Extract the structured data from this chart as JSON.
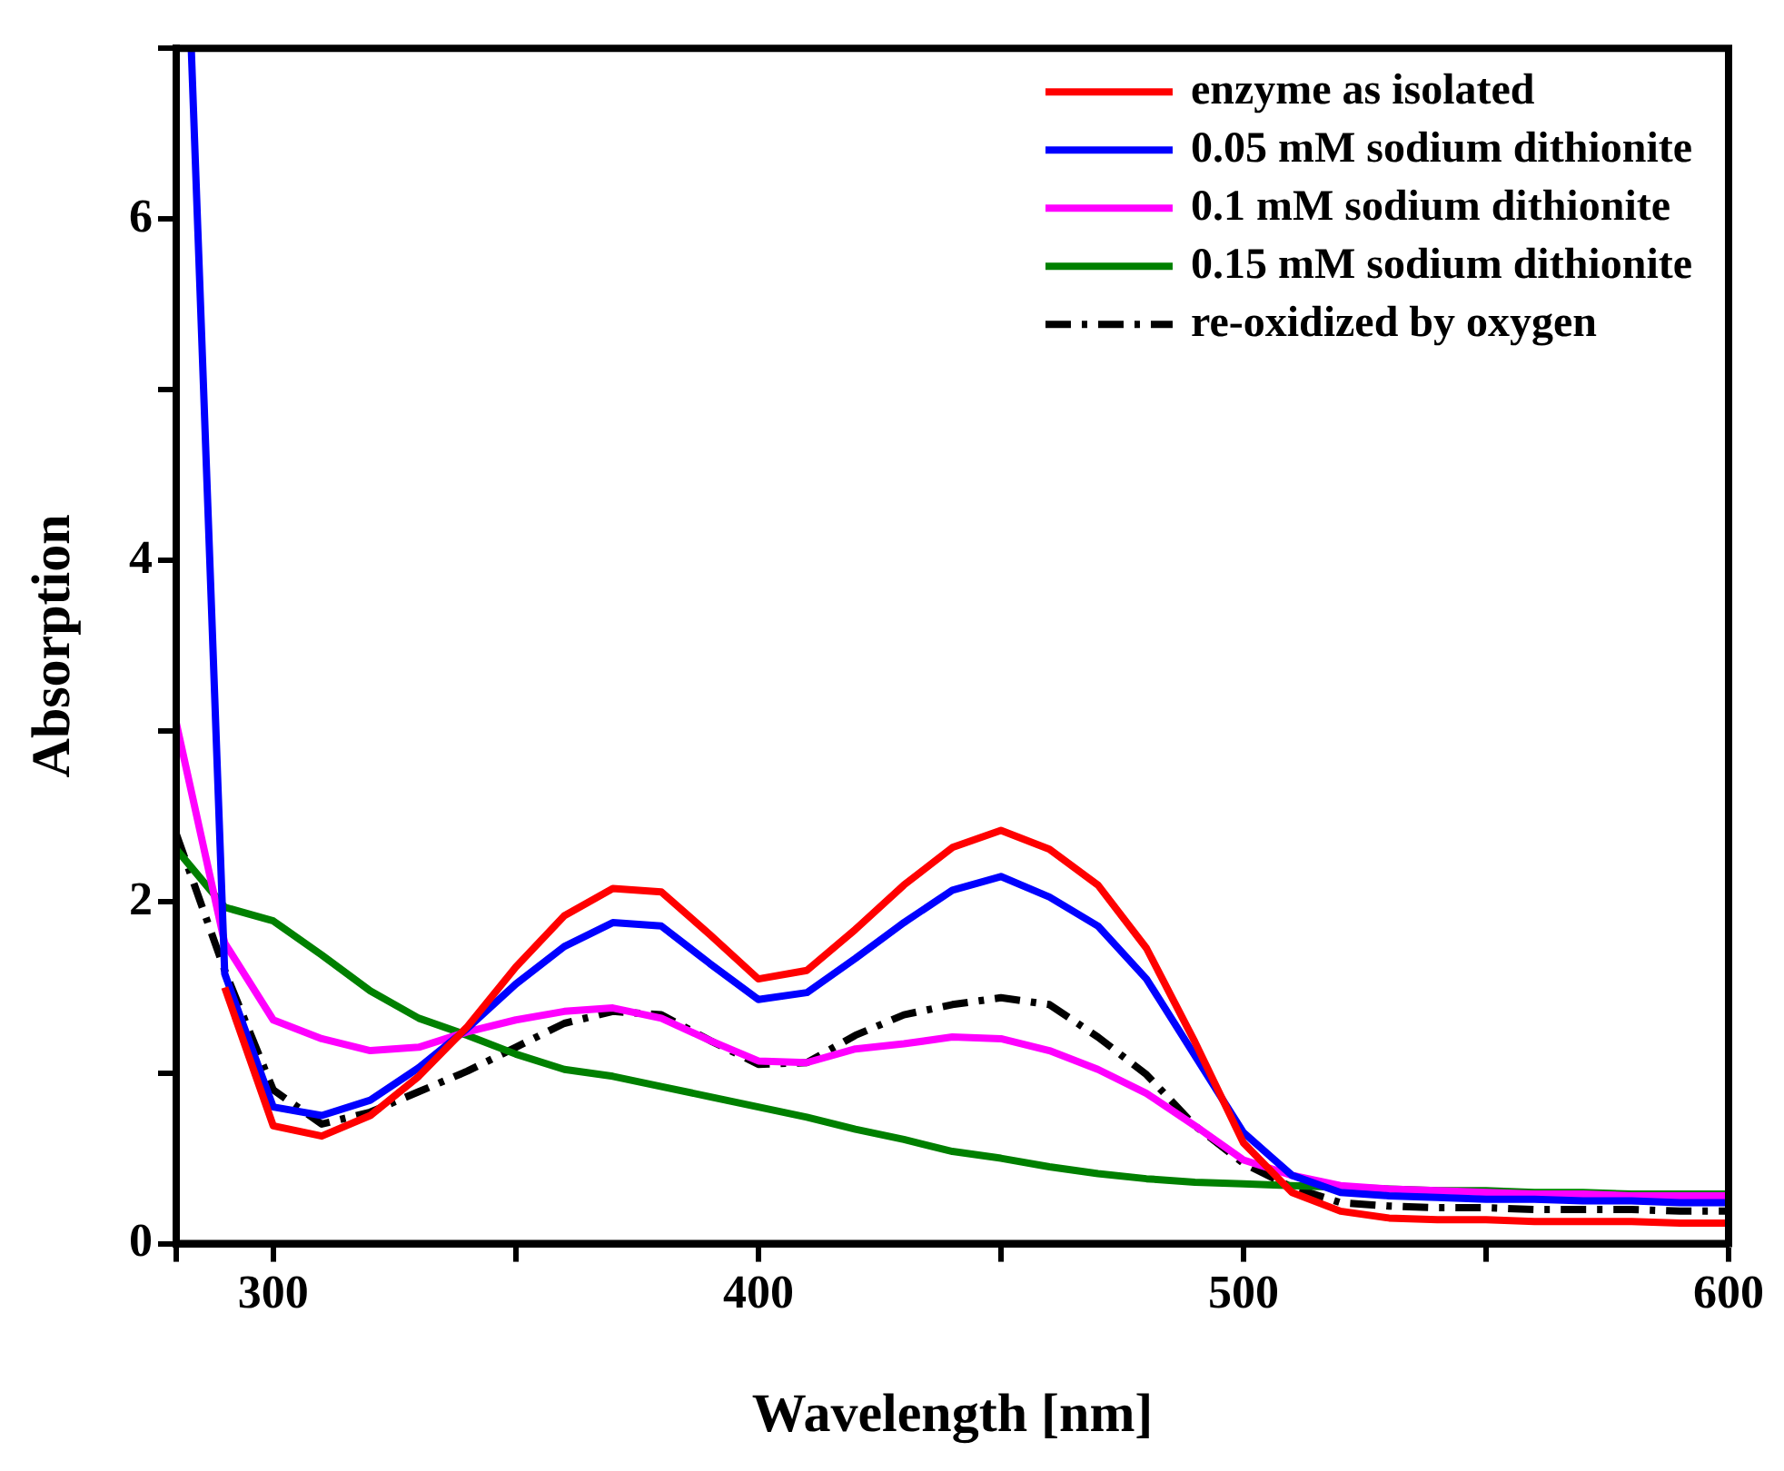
{
  "chart_data": {
    "type": "line",
    "xlabel": "Wavelength [nm]",
    "ylabel": "Absorption",
    "x": [
      280,
      290,
      300,
      310,
      320,
      330,
      340,
      350,
      360,
      370,
      380,
      390,
      400,
      410,
      420,
      430,
      440,
      450,
      460,
      470,
      480,
      490,
      500,
      510,
      520,
      530,
      540,
      550,
      560,
      570,
      580,
      590,
      600
    ],
    "xlim": [
      280,
      600
    ],
    "xticks": [
      {
        "value": 280,
        "label": null
      },
      300,
      {
        "value": 350,
        "label": null
      },
      400,
      {
        "value": 450,
        "label": null
      },
      500,
      {
        "value": 550,
        "label": null
      },
      600
    ],
    "ylim": [
      0,
      7
    ],
    "yticks": [
      0,
      {
        "value": 1,
        "label": null
      },
      2,
      {
        "value": 3,
        "label": null
      },
      4,
      {
        "value": 5,
        "label": null
      },
      6,
      {
        "value": 7,
        "label": null
      }
    ],
    "grid": false,
    "legend": "top right",
    "marker": "none",
    "series": [
      {
        "name": "enzyme as isolated",
        "color": "#ff0000",
        "values": [
          null,
          1.5,
          0.69,
          0.63,
          0.75,
          0.98,
          1.27,
          1.62,
          1.92,
          2.08,
          2.06,
          1.81,
          1.55,
          1.6,
          1.84,
          2.1,
          2.32,
          2.42,
          2.31,
          2.1,
          1.73,
          1.18,
          0.59,
          0.3,
          0.19,
          0.15,
          0.14,
          0.14,
          0.13,
          0.13,
          0.13,
          0.12,
          0.12
        ]
      },
      {
        "name": "0.05 mM sodium dithionite",
        "color": "#0000ff",
        "x": [
          283.1,
          290,
          300,
          310,
          320,
          330,
          340,
          350,
          360,
          370,
          380,
          390,
          400,
          410,
          420,
          430,
          440,
          450,
          460,
          470,
          480,
          490,
          500,
          510,
          520,
          530,
          540,
          550,
          560,
          570,
          580,
          590,
          600
        ],
        "values": [
          7,
          1.58,
          0.8,
          0.75,
          0.84,
          1.03,
          1.26,
          1.52,
          1.74,
          1.88,
          1.86,
          1.64,
          1.43,
          1.47,
          1.67,
          1.88,
          2.07,
          2.15,
          2.03,
          1.86,
          1.55,
          1.1,
          0.65,
          0.4,
          0.3,
          0.28,
          0.27,
          0.26,
          0.26,
          0.25,
          0.25,
          0.24,
          0.24
        ]
      },
      {
        "name": "0.1 mM sodium dithionite",
        "color": "#ff00ff",
        "values": [
          3.05,
          1.76,
          1.31,
          1.2,
          1.13,
          1.15,
          1.24,
          1.31,
          1.36,
          1.38,
          1.32,
          1.19,
          1.07,
          1.06,
          1.14,
          1.17,
          1.21,
          1.2,
          1.13,
          1.02,
          0.88,
          0.69,
          0.49,
          0.4,
          0.34,
          0.32,
          0.31,
          0.3,
          0.29,
          0.29,
          0.28,
          0.28,
          0.28
        ]
      },
      {
        "name": "0.15 mM sodium dithionite",
        "color": "#008000",
        "values": [
          2.31,
          1.97,
          1.89,
          1.69,
          1.48,
          1.32,
          1.22,
          1.11,
          1.02,
          0.98,
          0.92,
          0.86,
          0.8,
          0.74,
          0.67,
          0.61,
          0.54,
          0.5,
          0.45,
          0.41,
          0.38,
          0.36,
          0.35,
          0.34,
          0.33,
          0.32,
          0.31,
          0.31,
          0.3,
          0.3,
          0.29,
          0.29,
          0.29
        ]
      },
      {
        "name": "re-oxidized by oxygen",
        "color": "#000000",
        "line_style": "dashed",
        "values": [
          2.4,
          1.6,
          0.9,
          0.7,
          0.77,
          0.89,
          1.01,
          1.15,
          1.29,
          1.36,
          1.34,
          1.19,
          1.05,
          1.06,
          1.22,
          1.34,
          1.4,
          1.44,
          1.4,
          1.21,
          0.99,
          0.69,
          0.47,
          0.33,
          0.24,
          0.22,
          0.21,
          0.21,
          0.2,
          0.2,
          0.2,
          0.19,
          0.19
        ]
      }
    ]
  }
}
